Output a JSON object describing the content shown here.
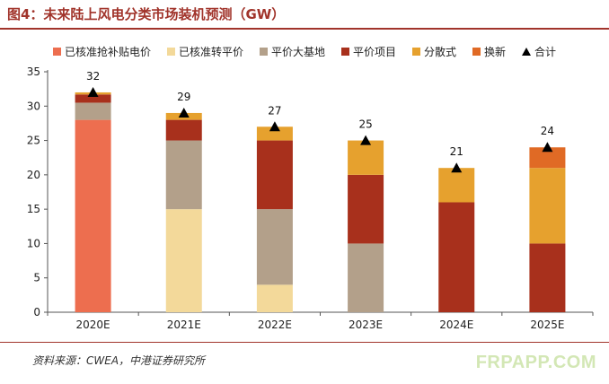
{
  "header": {
    "title": "图4：未来陆上风电分类市场装机预测（GW）"
  },
  "footer": {
    "source": "资料来源：CWEA，中港证券研究所",
    "watermark": "FRPAPP.COM"
  },
  "chart_data": {
    "type": "bar",
    "stacked": true,
    "categories": [
      "2020E",
      "2021E",
      "2022E",
      "2023E",
      "2024E",
      "2025E"
    ],
    "ylim": [
      0,
      35
    ],
    "yticks": [
      0,
      5,
      10,
      15,
      20,
      25,
      30,
      35
    ],
    "grid": false,
    "legend_position": "top",
    "series": [
      {
        "name": "已核准抢补贴电价",
        "color": "#ed6e4f",
        "values": [
          28,
          0,
          0,
          0,
          0,
          0
        ]
      },
      {
        "name": "已核准转平价",
        "color": "#f3d99a",
        "values": [
          0,
          15,
          4,
          0,
          0,
          0
        ]
      },
      {
        "name": "平价大基地",
        "color": "#b3a08a",
        "values": [
          2.5,
          10,
          11,
          10,
          0,
          0
        ]
      },
      {
        "name": "平价项目",
        "color": "#a8301c",
        "values": [
          1.2,
          3,
          10,
          10,
          16,
          10
        ]
      },
      {
        "name": "分散式",
        "color": "#e6a12e",
        "values": [
          0.3,
          1,
          2,
          5,
          5,
          11
        ]
      },
      {
        "name": "换新",
        "color": "#e06a25",
        "values": [
          0,
          0,
          0,
          0,
          0,
          3
        ]
      }
    ],
    "totals": {
      "name": "合计",
      "values": [
        32,
        29,
        27,
        25,
        21,
        24
      ]
    }
  }
}
